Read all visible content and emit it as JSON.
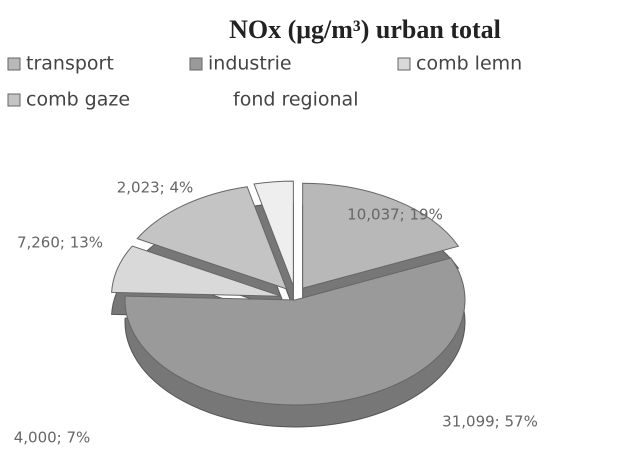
{
  "chart_data": {
    "type": "pie",
    "title": "NOx (μg/m³) urban total",
    "categories": [
      "transport",
      "industrie",
      "comb lemn",
      "comb gaze",
      "fond regional"
    ],
    "values": [
      10.037,
      31.099,
      4.0,
      7.26,
      2.023
    ],
    "value_labels": [
      "10,037; 19%",
      "31,099; 57%",
      "4,000; 7%",
      "7,260; 13%",
      "2,023; 4%"
    ],
    "colors": [
      "#b8b8b8",
      "#9a9a9a",
      "#d9d9d9",
      "#c4c4c4",
      "#eeeeee"
    ],
    "legend": "top"
  }
}
